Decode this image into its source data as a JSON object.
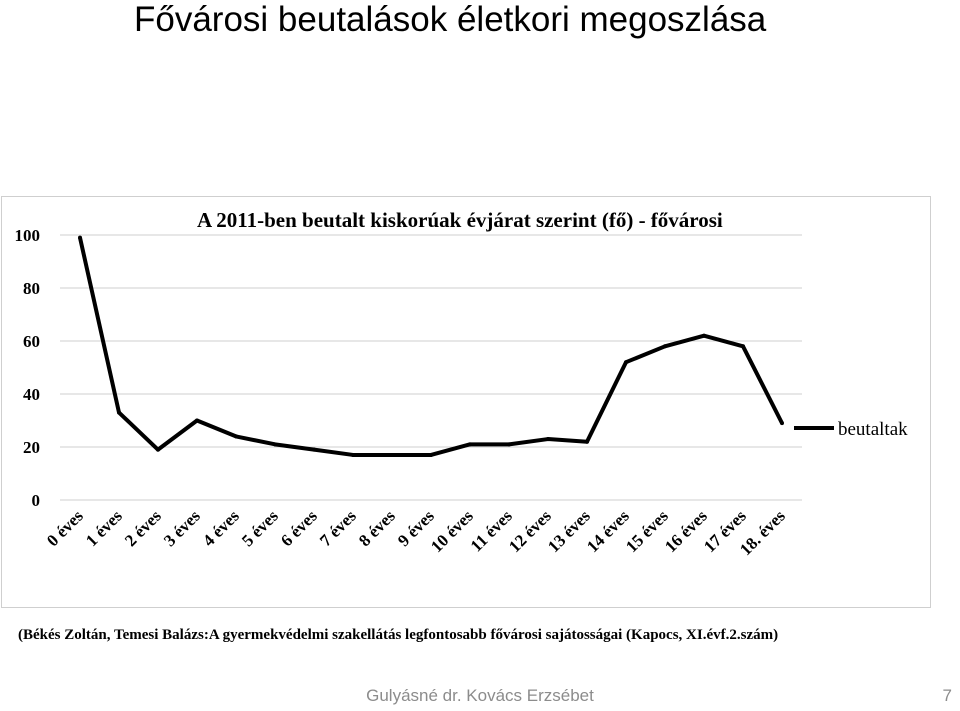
{
  "slide": {
    "title": "Fővárosi beutalások életkori megoszlása",
    "source": "(Békés Zoltán, Temesi Balázs:A gyermekvédelmi szakellátás legfontosabb fővárosi sajátosságai (Kapocs, XI.évf.2.szám)",
    "author": "Gulyásné dr. Kovács Erzsébet",
    "page_number": "7"
  },
  "chart_data": {
    "type": "line",
    "title": "A 2011-ben beutalt kiskorúak évjárat szerint (fő) - fővárosi",
    "xlabel": "",
    "ylabel": "",
    "ylim": [
      0,
      100
    ],
    "yticks": [
      0,
      20,
      40,
      60,
      80,
      100
    ],
    "grid": true,
    "legend_position": "right",
    "categories": [
      "0 éves",
      "1 éves",
      "2 éves",
      "3 éves",
      "4 éves",
      "5 éves",
      "6 éves",
      "7 éves",
      "8 éves",
      "9 éves",
      "10 éves",
      "11 éves",
      "12 éves",
      "13 éves",
      "14 éves",
      "15 éves",
      "16 éves",
      "17 éves",
      "18. éves"
    ],
    "series": [
      {
        "name": "beutaltak",
        "color": "#000000",
        "values": [
          99,
          33,
          19,
          30,
          24,
          21,
          19,
          17,
          17,
          17,
          21,
          21,
          23,
          22,
          52,
          58,
          62,
          58,
          29
        ]
      }
    ]
  }
}
